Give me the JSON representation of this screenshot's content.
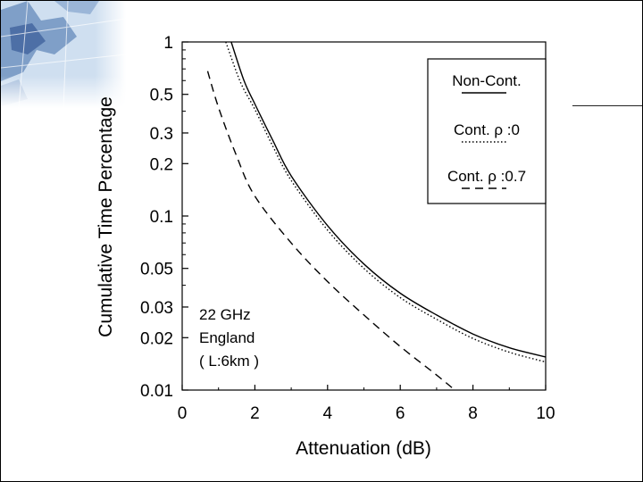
{
  "chart_data": {
    "type": "line",
    "ylabel": "Cumulative Time Percentage",
    "xlabel": "Attenuation (dB)",
    "xlim": [
      0,
      10
    ],
    "ylim": [
      0.01,
      1
    ],
    "yscale": "log",
    "x_ticks": [
      "0",
      "2",
      "4",
      "6",
      "8",
      "10"
    ],
    "y_ticks": [
      {
        "value": 1,
        "label": "1"
      },
      {
        "value": 0.5,
        "label": "0.5"
      },
      {
        "value": 0.3,
        "label": "0.3"
      },
      {
        "value": 0.2,
        "label": "0.2"
      },
      {
        "value": 0.1,
        "label": "0.1"
      },
      {
        "value": 0.05,
        "label": "0.05"
      },
      {
        "value": 0.03,
        "label": "0.03"
      },
      {
        "value": 0.02,
        "label": "0.02"
      },
      {
        "value": 0.01,
        "label": "0.01"
      }
    ],
    "series": [
      {
        "name": "Non-Cont.",
        "style": "solid",
        "x": [
          1.35,
          1.7,
          2.0,
          2.5,
          3.0,
          4.0,
          5.0,
          6.0,
          7.0,
          8.0,
          9.0,
          10.0
        ],
        "y": [
          1.0,
          0.6,
          0.44,
          0.27,
          0.17,
          0.088,
          0.053,
          0.036,
          0.027,
          0.021,
          0.0175,
          0.0155
        ]
      },
      {
        "name": "Cont. ρ:0",
        "style": "dotted",
        "x": [
          1.2,
          1.6,
          2.0,
          2.5,
          3.0,
          4.0,
          5.0,
          6.0,
          7.0,
          8.0,
          9.0,
          10.0
        ],
        "y": [
          1.0,
          0.59,
          0.41,
          0.25,
          0.16,
          0.083,
          0.05,
          0.034,
          0.0255,
          0.0198,
          0.0165,
          0.0145
        ]
      },
      {
        "name": "Cont. ρ:0.7",
        "style": "dashed",
        "x": [
          0.7,
          1.0,
          1.5,
          2.0,
          3.0,
          4.0,
          5.0,
          6.0,
          7.0,
          7.5
        ],
        "y": [
          0.68,
          0.42,
          0.22,
          0.13,
          0.07,
          0.042,
          0.027,
          0.0178,
          0.0122,
          0.01
        ]
      }
    ],
    "legend": {
      "position": "top-right",
      "entries": [
        "Non-Cont.",
        "Cont.  ρ :0",
        "Cont.  ρ :0.7"
      ]
    },
    "annotation": [
      "22 GHz",
      "England",
      "( L:6km )"
    ]
  }
}
